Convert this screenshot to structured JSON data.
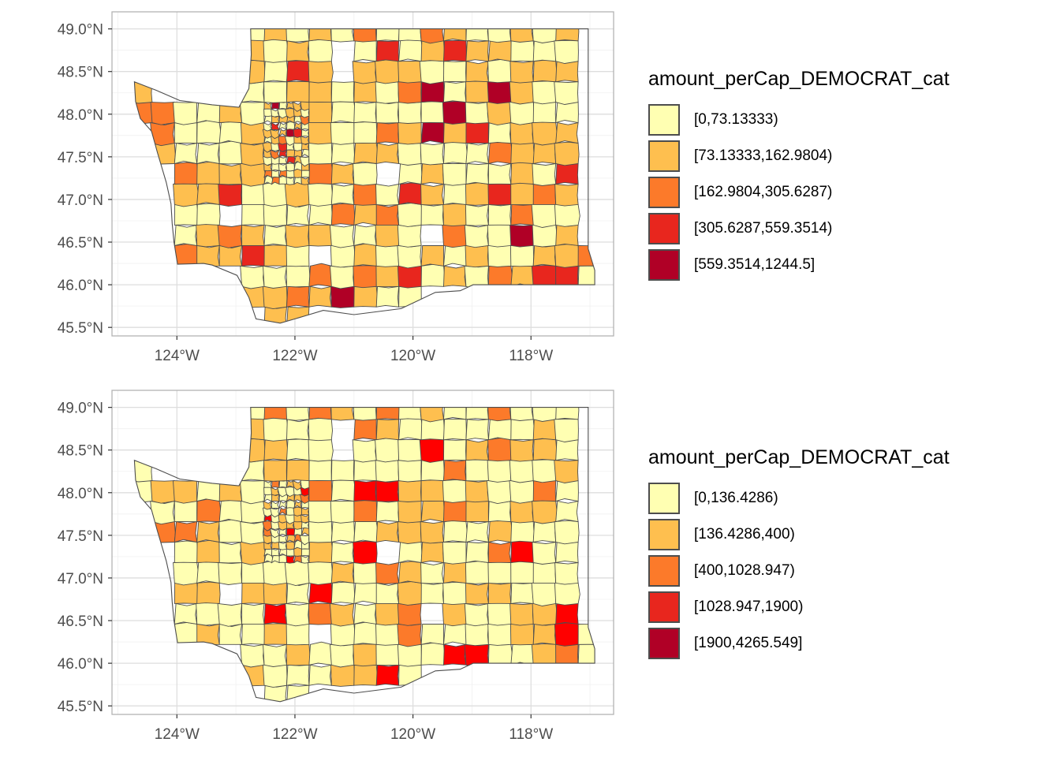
{
  "palette": [
    "#FFFFB2",
    "#FEBF4F",
    "#FC7A2A",
    "#E8261E",
    "#B00026"
  ],
  "highlight_red": "#FF0000",
  "border_color": "#4D4D4D",
  "axes": {
    "x_ticks": [
      {
        "value": -124,
        "label": "124°W"
      },
      {
        "value": -122,
        "label": "122°W"
      },
      {
        "value": -120,
        "label": "120°W"
      },
      {
        "value": -118,
        "label": "118°W"
      }
    ],
    "y_ticks": [
      {
        "value": 49.0,
        "label": "49.0°N"
      },
      {
        "value": 48.5,
        "label": "48.5°N"
      },
      {
        "value": 48.0,
        "label": "48.0°N"
      },
      {
        "value": 47.5,
        "label": "47.5°N"
      },
      {
        "value": 47.0,
        "label": "47.0°N"
      },
      {
        "value": 46.5,
        "label": "46.5°N"
      },
      {
        "value": 46.0,
        "label": "46.0°N"
      },
      {
        "value": 45.5,
        "label": "45.5°N"
      }
    ],
    "xlim": [
      -125.1,
      -116.6
    ],
    "ylim": [
      45.4,
      49.2
    ],
    "grid": true
  },
  "panels": [
    {
      "legend": {
        "title": "amount_perCap_DEMOCRAT_cat",
        "entries": [
          "[0,73.13333)",
          "[73.13333,162.9804)",
          "[162.9804,305.6287)",
          "[305.6287,559.3514)",
          "[559.3514,1244.5]"
        ]
      }
    },
    {
      "legend": {
        "title": "amount_perCap_DEMOCRAT_cat",
        "entries": [
          "[0,136.4286)",
          "[136.4286,400)",
          "[400,1028.947)",
          "[1028.947,1900)",
          "[1900,4265.549]"
        ]
      }
    }
  ]
}
